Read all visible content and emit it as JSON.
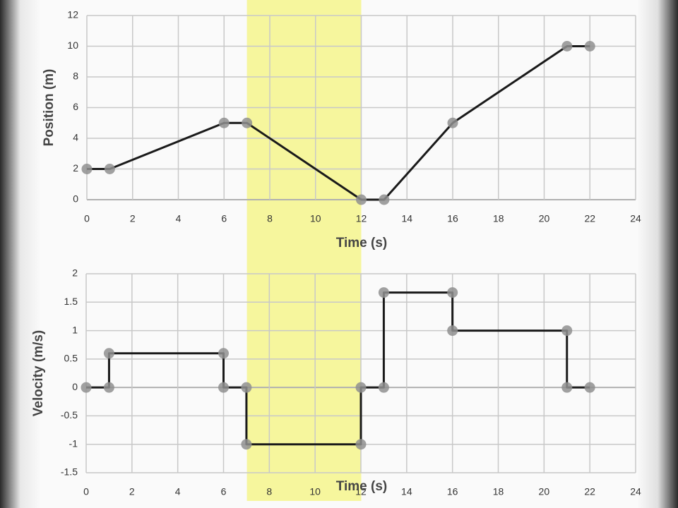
{
  "chart_data": [
    {
      "type": "line",
      "x_label": "Time (s)",
      "y_label": "Position (m)",
      "x": [
        0,
        1,
        6,
        7,
        12,
        13,
        16,
        21,
        22
      ],
      "values": [
        2,
        2,
        5,
        5,
        0,
        0,
        5,
        10,
        10
      ],
      "color": "#1a1a1a",
      "marker_color": "#8f8f8f",
      "xlim": [
        0,
        24
      ],
      "xticks": [
        0,
        2,
        4,
        6,
        8,
        10,
        12,
        14,
        16,
        18,
        20,
        22,
        24
      ],
      "ylim": [
        0,
        12
      ],
      "yticks": [
        0,
        2,
        4,
        6,
        8,
        10,
        12
      ],
      "grid": true,
      "shaded_region": [
        7,
        12
      ],
      "shaded_color": "#f4f48c"
    },
    {
      "type": "line",
      "x_label": "Time (s)",
      "y_label": "Velocity (m/s)",
      "x": [
        0,
        1,
        1,
        6,
        6,
        7,
        7,
        12,
        12,
        13,
        13,
        16,
        16,
        21,
        21,
        22
      ],
      "values": [
        0,
        0,
        0.6,
        0.6,
        0,
        0,
        -1,
        -1,
        0,
        0,
        1.67,
        1.67,
        1,
        1,
        0,
        0
      ],
      "color": "#1a1a1a",
      "marker_color": "#8f8f8f",
      "xlim": [
        0,
        24
      ],
      "xticks": [
        0,
        2,
        4,
        6,
        8,
        10,
        12,
        14,
        16,
        18,
        20,
        22,
        24
      ],
      "ylim": [
        -1.5,
        2
      ],
      "yticks": [
        -1.5,
        -1,
        -0.5,
        0,
        0.5,
        1,
        1.5,
        2
      ],
      "grid": true
    }
  ]
}
